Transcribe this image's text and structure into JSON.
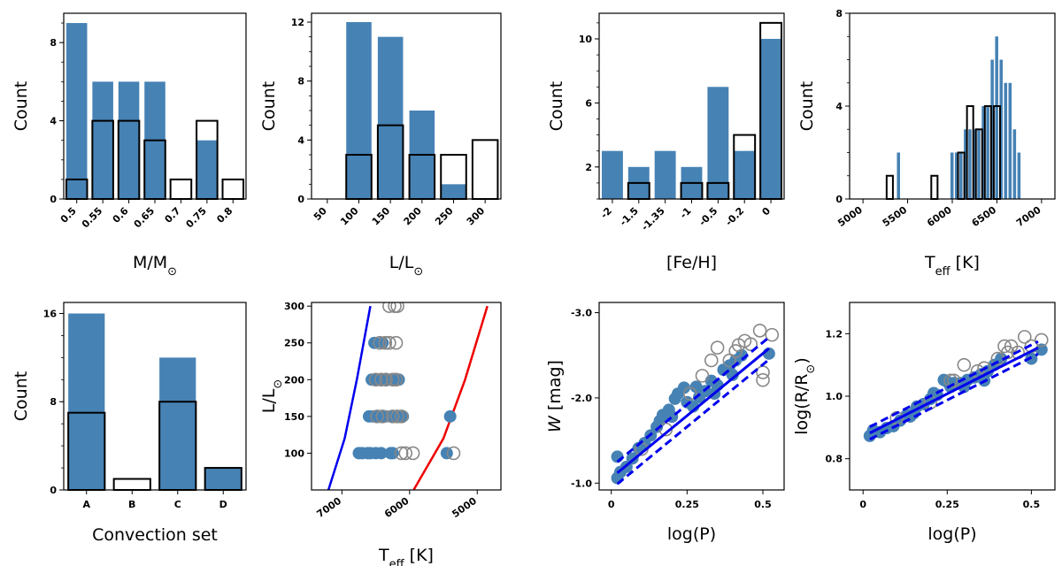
{
  "colors": {
    "bar": "#4682b4",
    "outline": "#000000",
    "line_blue": "#0000ee",
    "line_red": "#ee0000",
    "open_marker": "#888888"
  },
  "chart_data": [
    {
      "id": "mass",
      "type": "bar",
      "xlabel": "M/M",
      "xlabel_sub": "⊙",
      "ylabel": "Count",
      "categories": [
        "0.5",
        "0.55",
        "0.6",
        "0.65",
        "0.7",
        "0.75",
        "0.8"
      ],
      "series": [
        {
          "name": "filled",
          "values": [
            9,
            6,
            6,
            6,
            0,
            3,
            0
          ]
        },
        {
          "name": "outline",
          "values": [
            1,
            4,
            4,
            3,
            1,
            4,
            1
          ]
        }
      ],
      "ylim": [
        0,
        9.5
      ],
      "yticks": [
        0,
        4,
        8
      ],
      "yticklabels": [
        "0",
        "4",
        "8"
      ]
    },
    {
      "id": "lum",
      "type": "bar",
      "xlabel": "L/L",
      "xlabel_sub": "⊙",
      "ylabel": "Count",
      "categories": [
        "50",
        "100",
        "150",
        "200",
        "250",
        "300"
      ],
      "series": [
        {
          "name": "filled",
          "values": [
            0,
            12,
            11,
            6,
            1,
            0
          ]
        },
        {
          "name": "outline",
          "values": [
            0,
            3,
            5,
            3,
            3,
            4
          ]
        }
      ],
      "ylim": [
        0,
        12.6
      ],
      "yticks": [
        0,
        4,
        8,
        12
      ],
      "yticklabels": [
        "0",
        "4",
        "8",
        "12"
      ]
    },
    {
      "id": "feh",
      "type": "bar",
      "xlabel": "[Fe/H]",
      "ylabel": "Count",
      "categories": [
        "-2",
        "-1.5",
        "-1.35",
        "-1",
        "-0.5",
        "-0.2",
        "0"
      ],
      "series": [
        {
          "name": "filled",
          "values": [
            3,
            2,
            3,
            2,
            7,
            3,
            10
          ]
        },
        {
          "name": "outline",
          "values": [
            0,
            1,
            0,
            1,
            1,
            4,
            11
          ]
        }
      ],
      "ylim": [
        0,
        11.6
      ],
      "yticks": [
        2,
        6,
        10
      ],
      "yticklabels": [
        "2",
        "6",
        "10"
      ]
    },
    {
      "id": "teff",
      "type": "histogram",
      "xlabel": "T",
      "xlabel_sub": "eff",
      "xlabel_suffix": " [K]",
      "ylabel": "Count",
      "xlim": [
        4850,
        7150
      ],
      "ylim": [
        0,
        8
      ],
      "xticks": [
        5000,
        5500,
        6000,
        6500,
        7000
      ],
      "xticklabels": [
        "5000",
        "5500",
        "6000",
        "6500",
        "7000"
      ],
      "yticks": [
        0,
        4,
        8
      ],
      "yticklabels": [
        "0",
        "4",
        "8"
      ],
      "filled_bins": [
        [
          5400,
          2
        ],
        [
          6000,
          2
        ],
        [
          6050,
          2
        ],
        [
          6100,
          2
        ],
        [
          6150,
          3
        ],
        [
          6200,
          3
        ],
        [
          6250,
          3
        ],
        [
          6300,
          3
        ],
        [
          6350,
          4
        ],
        [
          6400,
          4
        ],
        [
          6450,
          6
        ],
        [
          6500,
          7
        ],
        [
          6550,
          6
        ],
        [
          6600,
          5
        ],
        [
          6650,
          5
        ],
        [
          6700,
          3
        ],
        [
          6750,
          2
        ]
      ],
      "filled_width": 40,
      "outline_bins": [
        [
          5300,
          1
        ],
        [
          5800,
          1
        ],
        [
          6100,
          2
        ],
        [
          6200,
          4
        ],
        [
          6300,
          3
        ],
        [
          6400,
          4
        ],
        [
          6500,
          4
        ]
      ],
      "outline_width": 100
    },
    {
      "id": "conv",
      "type": "bar",
      "xlabel": "Convection set",
      "ylabel": "Count",
      "categories": [
        "A",
        "B",
        "C",
        "D"
      ],
      "series": [
        {
          "name": "filled",
          "values": [
            16,
            0,
            12,
            2
          ]
        },
        {
          "name": "outline",
          "values": [
            7,
            1,
            8,
            2
          ]
        }
      ],
      "ylim": [
        0,
        17
      ],
      "yticks": [
        0,
        8,
        16
      ],
      "yticklabels": [
        "0",
        "8",
        "16"
      ]
    },
    {
      "id": "hrd",
      "type": "scatter",
      "xlabel": "T",
      "xlabel_sub": "eff",
      "xlabel_suffix": " [K]",
      "ylabel": "L/L",
      "ylabel_sub": "⊙",
      "xlim": [
        7450,
        4650
      ],
      "ylim": [
        50,
        305
      ],
      "xticks": [
        7000,
        6000,
        5000
      ],
      "xticklabels": [
        "7000",
        "6000",
        "5000"
      ],
      "yticks": [
        100,
        150,
        200,
        250,
        300
      ],
      "yticklabels": [
        "100",
        "150",
        "200",
        "250",
        "300"
      ],
      "filled": [
        [
          6750,
          100
        ],
        [
          6700,
          100
        ],
        [
          6620,
          100
        ],
        [
          6580,
          100
        ],
        [
          6500,
          100
        ],
        [
          6420,
          100
        ],
        [
          6280,
          100
        ],
        [
          6250,
          100
        ],
        [
          5450,
          100
        ],
        [
          5400,
          150
        ],
        [
          6600,
          150
        ],
        [
          6540,
          150
        ],
        [
          6480,
          150
        ],
        [
          6400,
          150
        ],
        [
          6350,
          150
        ],
        [
          6280,
          150
        ],
        [
          6200,
          150
        ],
        [
          6150,
          150
        ],
        [
          6100,
          150
        ],
        [
          6560,
          200
        ],
        [
          6480,
          200
        ],
        [
          6400,
          200
        ],
        [
          6320,
          200
        ],
        [
          6220,
          200
        ],
        [
          6160,
          200
        ],
        [
          6520,
          250
        ],
        [
          6400,
          250
        ]
      ],
      "open": [
        [
          6120,
          100
        ],
        [
          6060,
          100
        ],
        [
          5950,
          100
        ],
        [
          5350,
          100
        ],
        [
          6480,
          150
        ],
        [
          6400,
          150
        ],
        [
          6250,
          150
        ],
        [
          6180,
          150
        ],
        [
          6120,
          150
        ],
        [
          6500,
          200
        ],
        [
          6420,
          200
        ],
        [
          6350,
          200
        ],
        [
          6250,
          200
        ],
        [
          6200,
          200
        ],
        [
          6440,
          250
        ],
        [
          6360,
          250
        ],
        [
          6300,
          250
        ],
        [
          6200,
          250
        ],
        [
          6300,
          300
        ],
        [
          6220,
          300
        ],
        [
          6180,
          300
        ]
      ],
      "blue_line": [
        [
          7200,
          50
        ],
        [
          6960,
          120
        ],
        [
          6780,
          200
        ],
        [
          6580,
          300
        ]
      ],
      "red_line": [
        [
          5940,
          50
        ],
        [
          5500,
          120
        ],
        [
          5180,
          200
        ],
        [
          4850,
          300
        ]
      ]
    },
    {
      "id": "pl_w",
      "type": "scatter",
      "xlabel": "log(P)",
      "ylabel": "W",
      "ylabel_suffix": " [mag]",
      "xlim": [
        -0.04,
        0.57
      ],
      "ylim": [
        -0.92,
        -3.12
      ],
      "y_inverted": true,
      "xticks": [
        0,
        0.25,
        0.5
      ],
      "xticklabels": [
        "0",
        "0.25",
        "0.5"
      ],
      "yticks": [
        -1.0,
        -2.0,
        -3.0
      ],
      "yticklabels": [
        "-1.0",
        "-2.0",
        "-3.0"
      ],
      "filled": [
        [
          0.02,
          -1.06
        ],
        [
          0.03,
          -1.13
        ],
        [
          0.05,
          -1.19
        ],
        [
          0.07,
          -1.29
        ],
        [
          0.09,
          -1.41
        ],
        [
          0.11,
          -1.47
        ],
        [
          0.13,
          -1.56
        ],
        [
          0.15,
          -1.66
        ],
        [
          0.17,
          -1.8
        ],
        [
          0.19,
          -1.86
        ],
        [
          0.21,
          -1.99
        ],
        [
          0.22,
          -2.05
        ],
        [
          0.24,
          -2.12
        ],
        [
          0.25,
          -1.95
        ],
        [
          0.27,
          -1.9
        ],
        [
          0.29,
          -2.01
        ],
        [
          0.31,
          -2.08
        ],
        [
          0.33,
          -2.2
        ],
        [
          0.35,
          -2.15
        ],
        [
          0.37,
          -2.33
        ],
        [
          0.39,
          -2.38
        ],
        [
          0.41,
          -2.44
        ],
        [
          0.43,
          -2.5
        ],
        [
          0.52,
          -2.52
        ],
        [
          0.02,
          -1.31
        ],
        [
          0.16,
          -1.73
        ],
        [
          0.2,
          -1.78
        ],
        [
          0.28,
          -2.13
        ],
        [
          0.34,
          -2.05
        ],
        [
          0.4,
          -2.27
        ]
      ],
      "open": [
        [
          0.1,
          -1.4
        ],
        [
          0.18,
          -1.63
        ],
        [
          0.26,
          -2.05
        ],
        [
          0.3,
          -2.26
        ],
        [
          0.33,
          -2.44
        ],
        [
          0.35,
          -2.59
        ],
        [
          0.39,
          -2.44
        ],
        [
          0.41,
          -2.55
        ],
        [
          0.42,
          -2.62
        ],
        [
          0.44,
          -2.67
        ],
        [
          0.46,
          -2.63
        ],
        [
          0.49,
          -2.79
        ],
        [
          0.5,
          -2.3
        ],
        [
          0.53,
          -2.74
        ],
        [
          0.5,
          -2.21
        ]
      ],
      "fit": [
        [
          0.02,
          -1.12
        ],
        [
          0.52,
          -2.58
        ]
      ],
      "fit_upper": [
        [
          0.02,
          -1.25
        ],
        [
          0.52,
          -2.71
        ]
      ],
      "fit_lower": [
        [
          0.02,
          -0.99
        ],
        [
          0.52,
          -2.45
        ]
      ]
    },
    {
      "id": "pr",
      "type": "scatter",
      "xlabel": "log(P)",
      "ylabel": "log(R/R",
      "ylabel_sub": "⊙",
      "ylabel_suffix": ")",
      "xlim": [
        -0.04,
        0.57
      ],
      "ylim": [
        0.7,
        1.3
      ],
      "xticks": [
        0,
        0.25,
        0.5
      ],
      "xticklabels": [
        "0",
        "0.25",
        "0.5"
      ],
      "yticks": [
        0.8,
        1.0,
        1.2
      ],
      "yticklabels": [
        "0.8",
        "1.0",
        "1.2"
      ],
      "filled": [
        [
          0.02,
          0.873
        ],
        [
          0.03,
          0.891
        ],
        [
          0.05,
          0.885
        ],
        [
          0.07,
          0.898
        ],
        [
          0.09,
          0.904
        ],
        [
          0.11,
          0.922
        ],
        [
          0.13,
          0.94
        ],
        [
          0.15,
          0.945
        ],
        [
          0.16,
          0.967
        ],
        [
          0.18,
          0.975
        ],
        [
          0.2,
          0.991
        ],
        [
          0.22,
          1.004
        ],
        [
          0.24,
          1.052
        ],
        [
          0.25,
          1.046
        ],
        [
          0.26,
          1.03
        ],
        [
          0.27,
          1.042
        ],
        [
          0.29,
          1.042
        ],
        [
          0.31,
          1.052
        ],
        [
          0.33,
          1.06
        ],
        [
          0.35,
          1.07
        ],
        [
          0.37,
          1.08
        ],
        [
          0.39,
          1.1
        ],
        [
          0.41,
          1.12
        ],
        [
          0.5,
          1.12
        ],
        [
          0.53,
          1.149
        ],
        [
          0.14,
          0.935
        ],
        [
          0.21,
          1.01
        ],
        [
          0.3,
          1.03
        ],
        [
          0.36,
          1.05
        ]
      ],
      "open": [
        [
          0.1,
          0.93
        ],
        [
          0.2,
          0.98
        ],
        [
          0.26,
          1.05
        ],
        [
          0.3,
          1.1
        ],
        [
          0.34,
          1.08
        ],
        [
          0.36,
          1.09
        ],
        [
          0.4,
          1.12
        ],
        [
          0.42,
          1.16
        ],
        [
          0.43,
          1.14
        ],
        [
          0.44,
          1.16
        ],
        [
          0.46,
          1.14
        ],
        [
          0.48,
          1.19
        ],
        [
          0.5,
          1.16
        ],
        [
          0.53,
          1.18
        ],
        [
          0.27,
          1.05
        ]
      ],
      "fit": [
        [
          0.02,
          0.882
        ],
        [
          0.52,
          1.155
        ]
      ],
      "fit_upper": [
        [
          0.02,
          0.902
        ],
        [
          0.52,
          1.175
        ]
      ],
      "fit_lower": [
        [
          0.02,
          0.862
        ],
        [
          0.52,
          1.135
        ]
      ]
    }
  ]
}
